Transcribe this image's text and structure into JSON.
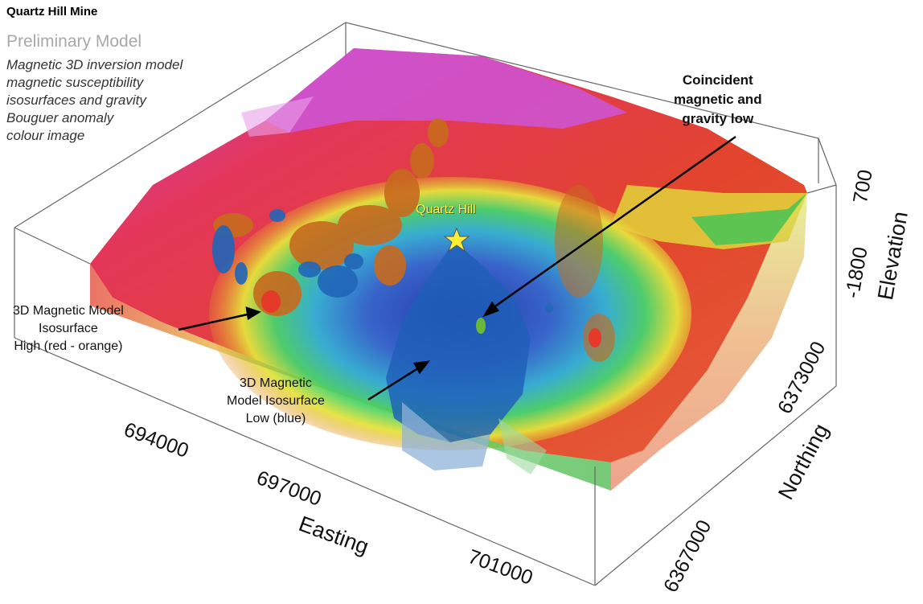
{
  "header": {
    "title": "Quartz Hill Mine",
    "subtitle": "Preliminary Model",
    "description_lines": [
      "Magnetic 3D inversion model",
      "magnetic susceptibility",
      "isosurfaces and gravity",
      "Bouguer anomaly",
      "colour image"
    ]
  },
  "annotations": {
    "coincident": [
      "Coincident",
      "magnetic and",
      "gravity low"
    ],
    "mag_high": [
      "3D Magnetic Model",
      "Isosurface",
      "High (red - orange)"
    ],
    "mag_low": [
      "3D Magnetic",
      "Model Isosurface",
      "Low (blue)"
    ],
    "site": "Quartz Hill"
  },
  "axes": {
    "easting": {
      "label": "Easting",
      "ticks": [
        "694000",
        "697000",
        "701000"
      ]
    },
    "northing": {
      "label": "Northing",
      "ticks": [
        "6373000",
        "6367000"
      ]
    },
    "elevation": {
      "label": "Elevation",
      "ticks": [
        "700",
        "-1800"
      ]
    }
  },
  "colors": {
    "gravity_high": "#e0302a",
    "gravity_mid": "#f3e23a",
    "gravity_low": "#2f9bd6",
    "mag_high": "#c86a1e",
    "mag_low": "#1f5fb8",
    "star": "#ffee33"
  }
}
